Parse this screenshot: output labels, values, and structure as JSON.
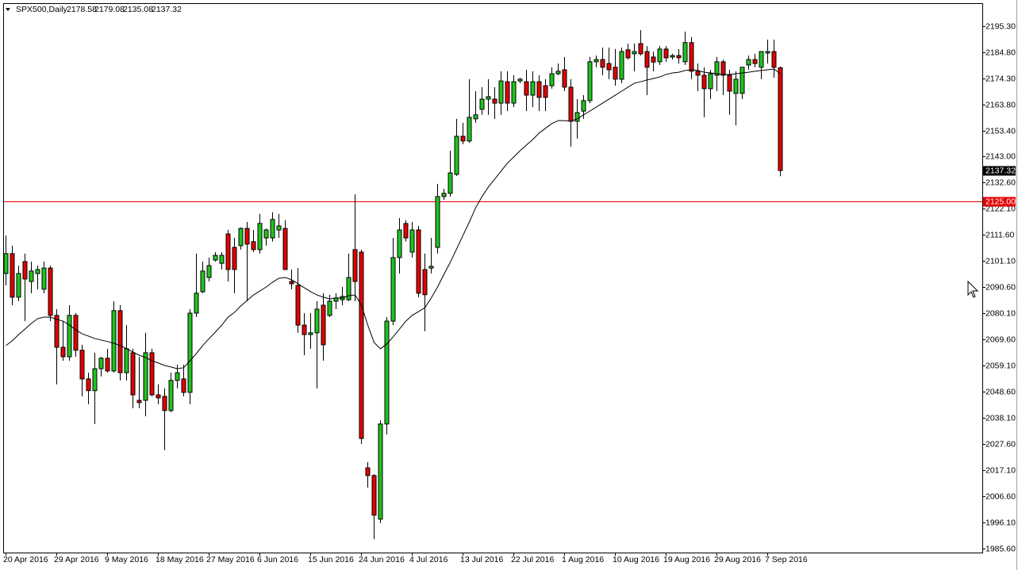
{
  "chart_data": {
    "type": "candlestick",
    "title": "SPX500,Daily",
    "categories": [
      "20 Apr 2016",
      null,
      null,
      null,
      null,
      null,
      null,
      null,
      "29 Apr 2016",
      null,
      null,
      null,
      null,
      null,
      null,
      null,
      "9 May 2016",
      null,
      null,
      null,
      null,
      null,
      null,
      null,
      "18 May 2016",
      null,
      null,
      null,
      null,
      null,
      null,
      null,
      "27 May 2016",
      null,
      null,
      null,
      null,
      null,
      null,
      null,
      "6 Jun 2016",
      null,
      null,
      null,
      null,
      null,
      null,
      null,
      "15 Jun 2016",
      null,
      null,
      null,
      null,
      null,
      null,
      null,
      "24 Jun 2016",
      null,
      null,
      null,
      null,
      null,
      null,
      null,
      "4 Jul 2016",
      null,
      null,
      null,
      null,
      null,
      null,
      null,
      "13 Jul 2016",
      null,
      null,
      null,
      null,
      null,
      null,
      null,
      "22 Jul 2016",
      null,
      null,
      null,
      null,
      null,
      null,
      null,
      "1 Aug 2016",
      null,
      null,
      null,
      null,
      null,
      null,
      null,
      "10 Aug 2016",
      null,
      null,
      null,
      null,
      null,
      null,
      null,
      "19 Aug 2016",
      null,
      null,
      null,
      null,
      null,
      null,
      null,
      "29 Aug 2016",
      null,
      null,
      null,
      null,
      null,
      null,
      null,
      "7 Sep 2016",
      null,
      null
    ],
    "open": [
      2096.0,
      2104.0,
      2086.5,
      2100.8,
      2092.8,
      2096.0,
      2089.7,
      2098.2,
      2079.2,
      2066.4,
      2062.6,
      2079.2,
      2065.2,
      2053.7,
      2049.0,
      2057.8,
      2062.0,
      2056.9,
      2081.1,
      2056.2,
      2064.2,
      2045.1,
      2045.1,
      2064.2,
      2047.3,
      2046.7,
      2041.0,
      2053.1,
      2053.7,
      2048.3,
      2080.1,
      2088.7,
      2094.4,
      2101.4,
      2100.1,
      2111.9,
      2106.5,
      2107.2,
      2114.1,
      2108.8,
      2105.6,
      2110.3,
      2110.3,
      2113.5,
      2114.1,
      2092.8,
      2091.2,
      2075.3,
      2071.5,
      2072.2,
      2083.3,
      2079.2,
      2084.9,
      2085.5,
      2085.5,
      2105.6,
      2104.6,
      2018.0,
      2014.9,
      1997.4,
      2035.6,
      2076.9,
      2102.4,
      2116.1,
      2104.6,
      2113.5,
      2097.6,
      2098.2,
      2106.5,
      2126.9,
      2128.2,
      2135.8,
      2151.1,
      2149.2,
      2158.1,
      2161.9,
      2166.0,
      2166.0,
      2164.4,
      2173.0,
      2164.4,
      2173.3,
      2173.0,
      2167.6,
      2173.0,
      2171.4,
      2171.4,
      2176.2,
      2177.8,
      2170.8,
      2157.1,
      2161.2,
      2165.4,
      2181.0,
      2181.9,
      2180.3,
      2178.8,
      2174.0,
      2185.8,
      2184.2,
      2188.3,
      2185.1,
      2182.9,
      2181.0,
      2186.1,
      2182.9,
      2183.5,
      2181.0,
      2188.7,
      2177.2,
      2175.6,
      2170.2,
      2175.6,
      2181.0,
      2175.6,
      2168.3,
      2168.3,
      2179.7,
      2181.9,
      2178.8,
      2184.5,
      2185.1,
      2178.58
    ],
    "high": [
      2111.3,
      2107.2,
      2099.2,
      2104.0,
      2100.8,
      2099.2,
      2100.8,
      2099.2,
      2081.7,
      2076.9,
      2083.3,
      2080.1,
      2067.4,
      2056.2,
      2064.2,
      2062.6,
      2065.8,
      2084.9,
      2083.3,
      2075.3,
      2065.8,
      2062.6,
      2072.2,
      2065.8,
      2051.5,
      2049.9,
      2056.2,
      2059.4,
      2059.4,
      2081.7,
      2104.0,
      2100.8,
      2102.4,
      2104.6,
      2104.6,
      2113.5,
      2110.3,
      2114.5,
      2116.7,
      2113.5,
      2119.9,
      2114.1,
      2120.6,
      2119.9,
      2117.4,
      2097.6,
      2098.2,
      2080.1,
      2080.1,
      2084.9,
      2088.1,
      2087.5,
      2088.1,
      2090.6,
      2104.0,
      2127.8,
      2105.6,
      2020.3,
      2015.5,
      2037.1,
      2078.5,
      2110.3,
      2118.3,
      2117.4,
      2116.7,
      2115.1,
      2104.0,
      2110.3,
      2132.0,
      2130.0,
      2145.3,
      2158.1,
      2156.5,
      2174.0,
      2169.2,
      2170.8,
      2174.0,
      2170.8,
      2177.2,
      2177.2,
      2175.6,
      2174.6,
      2177.8,
      2177.2,
      2175.6,
      2174.0,
      2178.8,
      2180.3,
      2182.9,
      2174.0,
      2166.0,
      2167.6,
      2182.9,
      2183.5,
      2186.7,
      2186.7,
      2186.1,
      2186.7,
      2188.3,
      2188.3,
      2193.7,
      2187.3,
      2185.1,
      2187.3,
      2187.3,
      2184.2,
      2186.1,
      2193.1,
      2190.9,
      2180.3,
      2178.8,
      2177.8,
      2182.9,
      2181.9,
      2177.8,
      2177.2,
      2178.8,
      2183.5,
      2184.2,
      2185.1,
      2189.9,
      2189.9,
      2179.08
    ],
    "low": [
      2091.2,
      2083.3,
      2084.9,
      2076.9,
      2088.1,
      2089.7,
      2088.1,
      2076.9,
      2051.5,
      2061.0,
      2061.0,
      2062.6,
      2046.7,
      2043.5,
      2035.6,
      2054.7,
      2056.2,
      2056.2,
      2053.1,
      2053.1,
      2041.9,
      2041.9,
      2038.7,
      2046.7,
      2043.5,
      2025.1,
      2040.3,
      2049.9,
      2046.7,
      2043.5,
      2078.5,
      2088.1,
      2092.8,
      2100.8,
      2097.6,
      2092.8,
      2088.1,
      2105.6,
      2084.9,
      2104.6,
      2104.0,
      2107.2,
      2108.8,
      2110.3,
      2097.6,
      2089.7,
      2072.2,
      2063.2,
      2065.8,
      2049.9,
      2061.0,
      2078.5,
      2081.7,
      2083.3,
      2084.9,
      2084.9,
      2027.6,
      2010.1,
      1989.4,
      1995.8,
      2031.4,
      2075.3,
      2096.0,
      2108.8,
      2102.4,
      2086.5,
      2072.8,
      2096.0,
      2104.0,
      2125.6,
      2126.9,
      2135.2,
      2147.9,
      2148.5,
      2156.5,
      2159.7,
      2159.7,
      2158.1,
      2159.7,
      2161.2,
      2162.8,
      2172.4,
      2161.2,
      2162.8,
      2161.2,
      2161.2,
      2170.2,
      2175.6,
      2169.2,
      2146.9,
      2150.1,
      2158.1,
      2164.4,
      2178.8,
      2175.6,
      2174.0,
      2171.4,
      2172.4,
      2181.9,
      2177.2,
      2183.5,
      2167.6,
      2177.2,
      2179.7,
      2181.0,
      2181.9,
      2180.3,
      2179.7,
      2174.0,
      2169.2,
      2158.7,
      2166.0,
      2169.2,
      2167.6,
      2159.7,
      2155.5,
      2166.0,
      2177.8,
      2178.8,
      2174.0,
      2180.3,
      2174.6,
      2135.08
    ],
    "close": [
      2104.0,
      2086.5,
      2096.0,
      2093.8,
      2097.0,
      2097.6,
      2098.2,
      2079.2,
      2066.4,
      2062.6,
      2079.2,
      2065.2,
      2053.7,
      2049.0,
      2057.8,
      2062.0,
      2056.9,
      2081.1,
      2056.2,
      2065.8,
      2047.3,
      2044.2,
      2064.2,
      2047.3,
      2046.1,
      2041.0,
      2053.1,
      2056.2,
      2048.3,
      2080.1,
      2088.1,
      2097.0,
      2099.2,
      2103.3,
      2103.3,
      2097.6,
      2097.6,
      2114.1,
      2107.8,
      2105.6,
      2116.1,
      2113.5,
      2117.7,
      2115.1,
      2097.6,
      2091.9,
      2075.3,
      2071.5,
      2072.2,
      2081.7,
      2067.4,
      2084.9,
      2086.2,
      2086.8,
      2094.4,
      2092.8,
      2029.8,
      2014.9,
      1999.0,
      2035.6,
      2076.9,
      2102.4,
      2113.5,
      2110.3,
      2113.5,
      2088.1,
      2087.5,
      2098.9,
      2126.9,
      2128.2,
      2136.4,
      2151.1,
      2149.2,
      2158.7,
      2159.7,
      2166.0,
      2167.0,
      2164.4,
      2173.3,
      2164.4,
      2173.0,
      2174.0,
      2167.6,
      2173.0,
      2166.7,
      2166.7,
      2176.2,
      2177.2,
      2170.8,
      2157.1,
      2160.6,
      2165.4,
      2181.0,
      2181.9,
      2178.8,
      2177.8,
      2174.0,
      2185.1,
      2182.6,
      2185.1,
      2184.2,
      2178.8,
      2180.9,
      2186.1,
      2182.6,
      2183.5,
      2182.6,
      2188.7,
      2177.2,
      2175.6,
      2170.2,
      2176.2,
      2181.0,
      2175.6,
      2169.2,
      2174.0,
      2178.8,
      2181.9,
      2180.3,
      2185.1,
      2185.1,
      2178.8,
      2137.32
    ],
    "ma": [
      2067.1,
      2069.0,
      2071.5,
      2073.7,
      2076.0,
      2077.9,
      2078.5,
      2078.5,
      2077.6,
      2076.9,
      2075.3,
      2073.4,
      2071.8,
      2070.9,
      2069.9,
      2069.3,
      2068.7,
      2068.0,
      2067.1,
      2065.8,
      2064.5,
      2063.2,
      2062.3,
      2061.0,
      2060.1,
      2059.1,
      2058.5,
      2057.8,
      2058.2,
      2061.0,
      2063.9,
      2067.1,
      2069.9,
      2072.5,
      2075.3,
      2078.5,
      2080.4,
      2083.0,
      2085.2,
      2087.4,
      2089.0,
      2090.6,
      2092.5,
      2094.1,
      2094.4,
      2093.5,
      2091.9,
      2090.3,
      2088.7,
      2087.4,
      2086.5,
      2085.8,
      2086.2,
      2086.2,
      2087.1,
      2087.4,
      2083.3,
      2075.3,
      2068.3,
      2065.8,
      2067.7,
      2070.6,
      2073.7,
      2076.9,
      2079.2,
      2080.7,
      2082.3,
      2086.2,
      2090.6,
      2095.7,
      2100.5,
      2105.9,
      2111.3,
      2116.7,
      2122.4,
      2126.9,
      2130.7,
      2133.9,
      2137.1,
      2140.3,
      2142.8,
      2145.3,
      2147.6,
      2149.8,
      2152.4,
      2154.3,
      2156.2,
      2157.4,
      2157.4,
      2157.1,
      2158.1,
      2159.7,
      2161.2,
      2162.8,
      2164.4,
      2166.0,
      2167.6,
      2169.2,
      2170.8,
      2172.4,
      2173.0,
      2173.7,
      2174.3,
      2174.9,
      2175.9,
      2176.5,
      2176.8,
      2177.5,
      2177.8,
      2177.5,
      2176.8,
      2176.5,
      2176.2,
      2175.9,
      2175.9,
      2176.2,
      2176.5,
      2176.8,
      2177.2,
      2177.5,
      2177.8,
      2178.1,
      2176.2
    ],
    "up_color": "#1fc41f",
    "down_color": "#e30000",
    "outline_color": "#000000",
    "ma_color": "#000000",
    "hline": {
      "value": 2125.0,
      "label": "2125.00",
      "color": "#e30000"
    },
    "last_price_color": "#000000",
    "ylim": [
      1984.0,
      2204.2
    ],
    "yticks": [
      {
        "value": 2195.3,
        "label": "2195.30"
      },
      {
        "value": 2184.8,
        "label": "2184.80"
      },
      {
        "value": 2174.3,
        "label": "2174.30"
      },
      {
        "value": 2163.8,
        "label": "2163.80"
      },
      {
        "value": 2153.4,
        "label": "2153.40"
      },
      {
        "value": 2143.0,
        "label": "2143.00"
      },
      {
        "value": 2132.6,
        "label": "2132.60"
      },
      {
        "value": 2122.1,
        "label": "2122.10"
      },
      {
        "value": 2111.6,
        "label": "2111.60"
      },
      {
        "value": 2101.1,
        "label": "2101.10"
      },
      {
        "value": 2090.6,
        "label": "2090.60"
      },
      {
        "value": 2080.1,
        "label": "2080.10"
      },
      {
        "value": 2069.6,
        "label": "2069.60"
      },
      {
        "value": 2059.1,
        "label": "2059.10"
      },
      {
        "value": 2048.6,
        "label": "2048.60"
      },
      {
        "value": 2038.1,
        "label": "2038.10"
      },
      {
        "value": 2027.6,
        "label": "2027.60"
      },
      {
        "value": 2017.1,
        "label": "2017.10"
      },
      {
        "value": 2006.6,
        "label": "2006.60"
      },
      {
        "value": 1996.1,
        "label": "1996.10"
      },
      {
        "value": 1985.6,
        "label": "1985.60"
      }
    ],
    "grid": false
  }
}
